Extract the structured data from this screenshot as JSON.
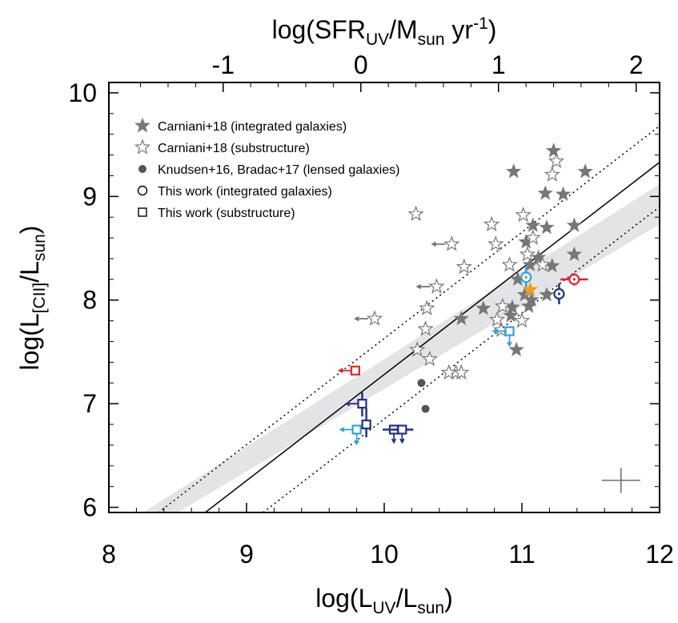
{
  "chart_data": {
    "type": "scatter",
    "xlabel": "log(L_UV/L_sun)",
    "ylabel": "log(L_[CII]/L_sun)",
    "top_xlabel": "log(SFR_UV/M_sun yr^-1)",
    "xlim": [
      8,
      12
    ],
    "ylim": [
      5.95,
      10.1
    ],
    "top_axis": {
      "offset": -9.83,
      "ticks": [
        -1,
        0,
        1,
        2
      ]
    },
    "x_ticks": [
      8,
      9,
      10,
      11,
      12
    ],
    "y_ticks": [
      6,
      7,
      8,
      9,
      10
    ],
    "grid": false,
    "legend_position": "top-left",
    "legend": [
      {
        "marker": "filled-star",
        "label": "Carniani+18 (integrated galaxies)"
      },
      {
        "marker": "open-star",
        "label": "Carniani+18 (substructure)"
      },
      {
        "marker": "filled-circle",
        "label": "Knudsen+16, Bradac+17 (lensed galaxies)"
      },
      {
        "marker": "open-circle",
        "label": "This work (integrated galaxies)"
      },
      {
        "marker": "open-square",
        "label": "This work (substructure)"
      }
    ],
    "relations": {
      "solid_line": [
        [
          8.7,
          5.95
        ],
        [
          12.0,
          9.33
        ]
      ],
      "dotted_upper": [
        [
          8.0,
          5.58
        ],
        [
          12.0,
          9.68
        ]
      ],
      "dotted_lower": [
        [
          9.12,
          5.95
        ],
        [
          12.0,
          8.9
        ]
      ],
      "shaded_band_upper": [
        [
          8.0,
          5.74
        ],
        [
          12.0,
          9.12
        ]
      ],
      "shaded_band_lower": [
        [
          8.5,
          5.95
        ],
        [
          12.0,
          8.73
        ]
      ]
    },
    "series": [
      {
        "marker": "filled-star",
        "color": "#777777",
        "points": [
          [
            11.23,
            9.44
          ],
          [
            10.94,
            9.24
          ],
          [
            11.46,
            9.24
          ],
          [
            11.17,
            9.03
          ],
          [
            11.3,
            9.02
          ],
          [
            11.08,
            8.72
          ],
          [
            11.18,
            8.7
          ],
          [
            11.38,
            8.72
          ],
          [
            11.03,
            8.56
          ],
          [
            11.22,
            8.33
          ],
          [
            11.38,
            8.44
          ],
          [
            11.06,
            8.34
          ],
          [
            10.97,
            8.2
          ],
          [
            11.02,
            8.05
          ],
          [
            11.18,
            8.05
          ],
          [
            11.07,
            8.0
          ],
          [
            10.72,
            7.92
          ],
          [
            10.93,
            7.93
          ],
          [
            11.05,
            7.94
          ],
          [
            10.92,
            7.85
          ],
          [
            10.56,
            7.82
          ],
          [
            10.96,
            7.52
          ],
          [
            11.12,
            8.41
          ]
        ]
      },
      {
        "marker": "open-star",
        "color": "#777777",
        "points": [
          [
            11.25,
            9.34
          ],
          [
            11.22,
            9.21
          ],
          [
            10.23,
            8.83
          ],
          [
            11.01,
            8.82
          ],
          [
            10.78,
            8.73
          ],
          [
            11.08,
            8.6
          ],
          [
            10.49,
            8.54
          ],
          [
            10.81,
            8.54
          ],
          [
            11.04,
            8.44
          ],
          [
            10.58,
            8.32
          ],
          [
            10.91,
            8.34
          ],
          [
            11.15,
            8.34
          ],
          [
            10.38,
            8.13
          ],
          [
            10.31,
            7.92
          ],
          [
            10.86,
            7.94
          ],
          [
            10.24,
            7.52
          ],
          [
            10.3,
            7.72
          ],
          [
            10.33,
            7.43
          ],
          [
            10.52,
            7.3
          ],
          [
            10.56,
            7.3
          ],
          [
            10.47,
            7.3
          ],
          [
            9.93,
            7.82
          ],
          [
            10.85,
            7.71
          ],
          [
            11.0,
            7.8
          ],
          [
            10.82,
            7.81
          ]
        ]
      },
      {
        "marker": "open-star-upper-limit-left",
        "color": "#777777",
        "points": [
          [
            10.49,
            8.54
          ],
          [
            10.38,
            8.13
          ],
          [
            9.93,
            7.82
          ]
        ]
      },
      {
        "marker": "filled-circle",
        "color": "#555555",
        "points": [
          [
            10.27,
            7.2
          ],
          [
            10.3,
            6.95
          ]
        ]
      },
      {
        "marker": "open-circle",
        "color": "#E8202A",
        "points": [
          [
            11.38,
            8.2
          ]
        ],
        "xerr": 0.1,
        "yerr": 0.06
      },
      {
        "marker": "open-circle",
        "color": "#22318C",
        "points": [
          [
            11.27,
            8.06
          ]
        ],
        "yerr": 0.1
      },
      {
        "marker": "open-circle",
        "color": "#2EA3DA",
        "points": [
          [
            11.03,
            8.22
          ]
        ],
        "yerr": 0.1
      },
      {
        "marker": "filled-star",
        "color": "#F29A1D",
        "points": [
          [
            11.06,
            8.1
          ]
        ]
      },
      {
        "marker": "open-square",
        "color": "#E8202A",
        "points": [
          [
            9.79,
            7.32
          ]
        ],
        "limit": "upper-x"
      },
      {
        "marker": "open-square",
        "color": "#2EA3DA",
        "points": [
          [
            10.91,
            7.7
          ],
          [
            9.8,
            6.75
          ]
        ],
        "limit": "upper-x-y"
      },
      {
        "marker": "open-square",
        "color": "#22318C",
        "points": [
          [
            9.84,
            7.0
          ],
          [
            9.87,
            6.8
          ],
          [
            10.07,
            6.75
          ],
          [
            10.13,
            6.75
          ]
        ],
        "limit": "mixed"
      }
    ],
    "error_bar_scale_cross": {
      "x": 11.72,
      "y": 6.26,
      "xerr": 0.14,
      "yerr": 0.12
    }
  }
}
